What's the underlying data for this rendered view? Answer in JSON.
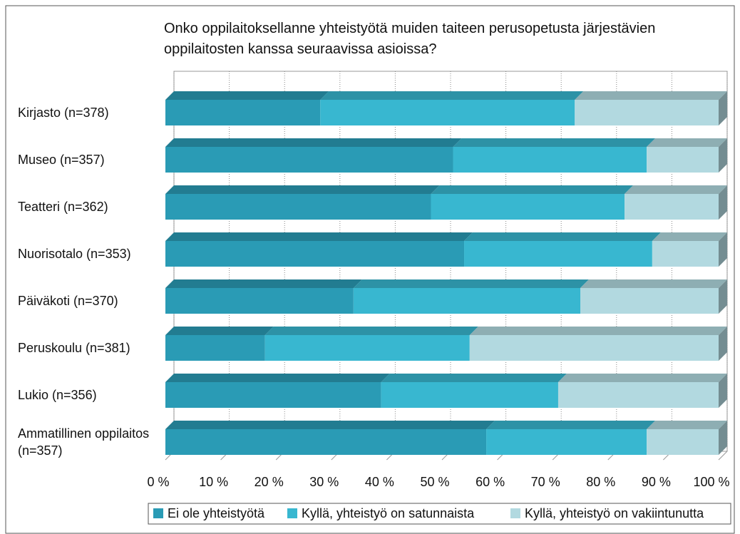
{
  "chart_data": {
    "type": "bar",
    "orientation": "horizontal",
    "stacked": true,
    "title": "Onko oppilaitoksellanne yhteistyötä muiden taiteen perusopetusta järjestävien oppilaitosten kanssa seuraavissa asioissa?",
    "categories": [
      "Kirjasto (n=378)",
      "Museo (n=357)",
      "Teatteri (n=362)",
      "Nuorisotalo (n=353)",
      "Päiväkoti (n=370)",
      "Peruskoulu (n=381)",
      "Lukio (n=356)",
      "Ammatillinen oppilaitos (n=357)"
    ],
    "series": [
      {
        "name": "Ei ole yhteistyötä",
        "color": "#2a9bb5",
        "values": [
          28,
          52,
          48,
          54,
          34,
          18,
          39,
          58
        ]
      },
      {
        "name": "Kyllä, yhteistyö on satunnaista",
        "color": "#38b7d0",
        "values": [
          46,
          35,
          35,
          34,
          41,
          37,
          32,
          29
        ]
      },
      {
        "name": "Kyllä, yhteistyö on vakiintunutta",
        "color": "#b2d9e0",
        "values": [
          26,
          13,
          17,
          12,
          25,
          45,
          29,
          13
        ]
      }
    ],
    "xlim": [
      0,
      100
    ],
    "xticks": [
      {
        "value": 0,
        "label": "0 %"
      },
      {
        "value": 10,
        "label": "10 %"
      },
      {
        "value": 20,
        "label": "20 %"
      },
      {
        "value": 30,
        "label": "30 %"
      },
      {
        "value": 40,
        "label": "40 %"
      },
      {
        "value": 50,
        "label": "50 %"
      },
      {
        "value": 60,
        "label": "60 %"
      },
      {
        "value": 70,
        "label": "70 %"
      },
      {
        "value": 80,
        "label": "80 %"
      },
      {
        "value": 90,
        "label": "90 %"
      },
      {
        "value": 100,
        "label": "100 %"
      }
    ],
    "grid": true,
    "legend": "bottom"
  }
}
